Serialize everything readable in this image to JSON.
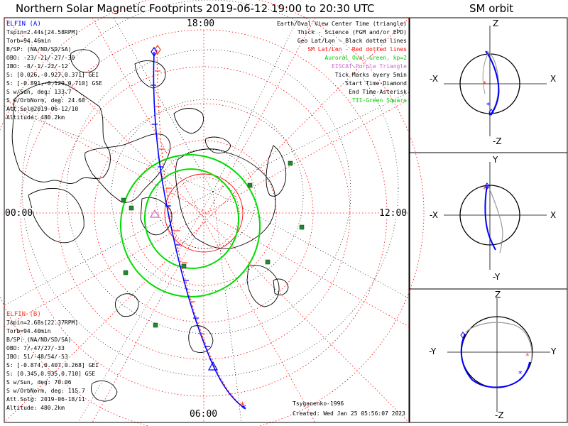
{
  "title": "Northern Solar Magnetic Footprints 2019-06-12 19:00 to 20:30 UTC",
  "orbit_title": "SM orbit",
  "map_time_labels": {
    "top": "18:00",
    "left": "00:00",
    "right": "12:00",
    "bottom": "06:00"
  },
  "elfin_a": {
    "header": "ELFIN (A)",
    "lines": [
      "Tspin=2.44s[24.58RPM]",
      "Torb=94.46min",
      "B/SP: (NA/ND/SD/SA)",
      "OBO: -23/-21/-27/-30",
      "IBO: -8/-1/-22/-12",
      "S: [0.026,-0.927,0.371] GEI",
      "S: [-0.891,-0.129,0.710] GSE",
      "S w/Sun, deg: 133.7",
      "S w/OrbNorm, deg: 24.68",
      "Att.Sol@2019-06-12/10",
      "Altitude: 480.2km"
    ]
  },
  "elfin_b": {
    "header": "ELFIN (B)",
    "lines": [
      "Tspin=2.68s[22.37RPM]",
      "Torb=94.40min",
      "B/SP: (NA/ND/SD/SA)",
      "OBO: 7/-47/27/-33",
      "IBO: 51/-48/54/-53",
      "S: [-0.874,0.407,0.268] GEI",
      "S: [0.345,0.935,0.710] GSE",
      "S w/Sun, deg: 70.06",
      "S w/OrbNorm, deg: 115.7",
      "Att.Sol@: 2019-06-18/11",
      "Altitude: 480.2km"
    ]
  },
  "legend": [
    {
      "text": "Earth/Oval View Center Time (triangle)",
      "color": "#000000"
    },
    {
      "text": "Thick - Science (FGM and/or EPD)",
      "color": "#000000"
    },
    {
      "text": "Geo Lat/Lon - Black dotted lines",
      "color": "#000000"
    },
    {
      "text": "SM Lat/Lon - Red dotted lines",
      "color": "#ff0000"
    },
    {
      "text": "Auroral Oval-Green, kp=2",
      "color": "#00cc00"
    },
    {
      "text": "EISCAT-Purple Triangle",
      "color": "#cc66cc"
    },
    {
      "text": "Tick Marks every 5min",
      "color": "#000000"
    },
    {
      "text": "Start Time-Diamond",
      "color": "#000000"
    },
    {
      "text": "End Time-Asterisk",
      "color": "#000000"
    },
    {
      "text": "TII-Green Square",
      "color": "#00cc00"
    }
  ],
  "model": "Tsyganenko-1996",
  "created": "Created: Wed Jan 25 05:56:07 2023",
  "panels": [
    {
      "top": "Z",
      "bottom": "-Z",
      "left": "-X",
      "right": "X"
    },
    {
      "top": "Y",
      "bottom": "-Y",
      "left": "-X",
      "right": "X"
    },
    {
      "top": "Z",
      "bottom": "-Z",
      "left": "-Y",
      "right": "Y"
    }
  ],
  "colors": {
    "elfin_a": "#0000ff",
    "elfin_b": "#ff3b1f",
    "oval": "#00dd00",
    "sm_grid": "#ff0000",
    "geo_grid": "#000000",
    "eiscat": "#cc66cc",
    "tii": "#228833"
  }
}
